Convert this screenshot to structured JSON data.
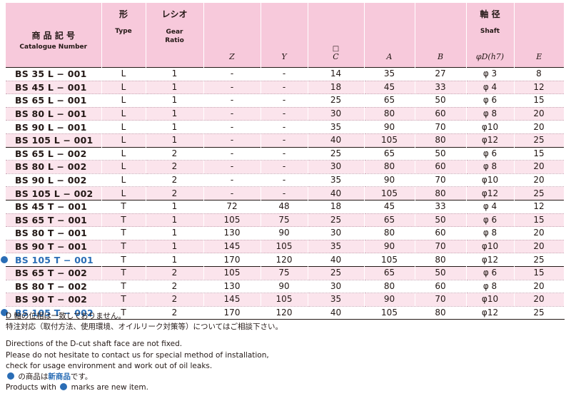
{
  "header": {
    "catalogue_jp": "商 品 記 号",
    "catalogue_en": "Catalogue Number",
    "type_jp": "形",
    "type_en": "Type",
    "ratio_jp": "レシオ",
    "ratio_en": "Gear Ratio",
    "z": "Z",
    "y": "Y",
    "c_symbol": "□",
    "c": "C",
    "a": "A",
    "b": "B",
    "shaft_jp": "軸 径",
    "shaft_en": "Shaft",
    "shaft_sym": "φD(h7)",
    "e": "E"
  },
  "rows": [
    {
      "code": "BS 35 L − 001",
      "type": "L",
      "ratio": "1",
      "z": "-",
      "y": "-",
      "c": "14",
      "a": "35",
      "b": "27",
      "d": "φ 3",
      "e": "8"
    },
    {
      "code": "BS 45 L − 001",
      "type": "L",
      "ratio": "1",
      "z": "-",
      "y": "-",
      "c": "18",
      "a": "45",
      "b": "33",
      "d": "φ 4",
      "e": "12"
    },
    {
      "code": "BS 65 L − 001",
      "type": "L",
      "ratio": "1",
      "z": "-",
      "y": "-",
      "c": "25",
      "a": "65",
      "b": "50",
      "d": "φ 6",
      "e": "15"
    },
    {
      "code": "BS 80 L − 001",
      "type": "L",
      "ratio": "1",
      "z": "-",
      "y": "-",
      "c": "30",
      "a": "80",
      "b": "60",
      "d": "φ 8",
      "e": "20"
    },
    {
      "code": "BS 90 L − 001",
      "type": "L",
      "ratio": "1",
      "z": "-",
      "y": "-",
      "c": "35",
      "a": "90",
      "b": "70",
      "d": "φ10",
      "e": "20"
    },
    {
      "code": "BS 105 L − 001",
      "type": "L",
      "ratio": "1",
      "z": "-",
      "y": "-",
      "c": "40",
      "a": "105",
      "b": "80",
      "d": "φ12",
      "e": "25"
    },
    {
      "code": "BS 65 L − 002",
      "type": "L",
      "ratio": "2",
      "z": "-",
      "y": "-",
      "c": "25",
      "a": "65",
      "b": "50",
      "d": "φ 6",
      "e": "15"
    },
    {
      "code": "BS 80 L − 002",
      "type": "L",
      "ratio": "2",
      "z": "-",
      "y": "-",
      "c": "30",
      "a": "80",
      "b": "60",
      "d": "φ 8",
      "e": "20"
    },
    {
      "code": "BS 90 L − 002",
      "type": "L",
      "ratio": "2",
      "z": "-",
      "y": "-",
      "c": "35",
      "a": "90",
      "b": "70",
      "d": "φ10",
      "e": "20"
    },
    {
      "code": "BS 105 L − 002",
      "type": "L",
      "ratio": "2",
      "z": "-",
      "y": "-",
      "c": "40",
      "a": "105",
      "b": "80",
      "d": "φ12",
      "e": "25"
    },
    {
      "code": "BS 45 T − 001",
      "type": "T",
      "ratio": "1",
      "z": "72",
      "y": "48",
      "c": "18",
      "a": "45",
      "b": "33",
      "d": "φ 4",
      "e": "12"
    },
    {
      "code": "BS 65 T − 001",
      "type": "T",
      "ratio": "1",
      "z": "105",
      "y": "75",
      "c": "25",
      "a": "65",
      "b": "50",
      "d": "φ 6",
      "e": "15"
    },
    {
      "code": "BS 80 T − 001",
      "type": "T",
      "ratio": "1",
      "z": "130",
      "y": "90",
      "c": "30",
      "a": "80",
      "b": "60",
      "d": "φ 8",
      "e": "20"
    },
    {
      "code": "BS 90 T − 001",
      "type": "T",
      "ratio": "1",
      "z": "145",
      "y": "105",
      "c": "35",
      "a": "90",
      "b": "70",
      "d": "φ10",
      "e": "20"
    },
    {
      "code": "BS 105 T − 001",
      "type": "T",
      "ratio": "1",
      "z": "170",
      "y": "120",
      "c": "40",
      "a": "105",
      "b": "80",
      "d": "φ12",
      "e": "25",
      "new": true
    },
    {
      "code": "BS 65 T − 002",
      "type": "T",
      "ratio": "2",
      "z": "105",
      "y": "75",
      "c": "25",
      "a": "65",
      "b": "50",
      "d": "φ 6",
      "e": "15"
    },
    {
      "code": "BS 80 T − 002",
      "type": "T",
      "ratio": "2",
      "z": "130",
      "y": "90",
      "c": "30",
      "a": "80",
      "b": "60",
      "d": "φ 8",
      "e": "20"
    },
    {
      "code": "BS 90 T − 002",
      "type": "T",
      "ratio": "2",
      "z": "145",
      "y": "105",
      "c": "35",
      "a": "90",
      "b": "70",
      "d": "φ10",
      "e": "20"
    },
    {
      "code": "BS 105 T − 002",
      "type": "T",
      "ratio": "2",
      "z": "170",
      "y": "120",
      "c": "40",
      "a": "105",
      "b": "80",
      "d": "φ12",
      "e": "25",
      "new": true
    }
  ],
  "notes": {
    "jp1": "D 軸の位相は一致しておりません。",
    "jp2": "特注対応（取付方法、使用環境、オイルリーク対策等）についてはご相談下さい。",
    "en1": "Directions of the D-cut shaft face are not fixed.",
    "en2": "Please do not hesitate to contact us for special method of installation,",
    "en3": "check for usage environment and work out of oil leaks.",
    "legend_jp_pre": "の商品は",
    "legend_jp_new": "新商品",
    "legend_jp_post": "です。",
    "legend_en_pre": "Products with",
    "legend_en_post": "marks are new item."
  },
  "colors": {
    "header_bg": "#f7c9db",
    "row_alt": "#fbe4ec",
    "new_mark": "#2a6db5"
  }
}
